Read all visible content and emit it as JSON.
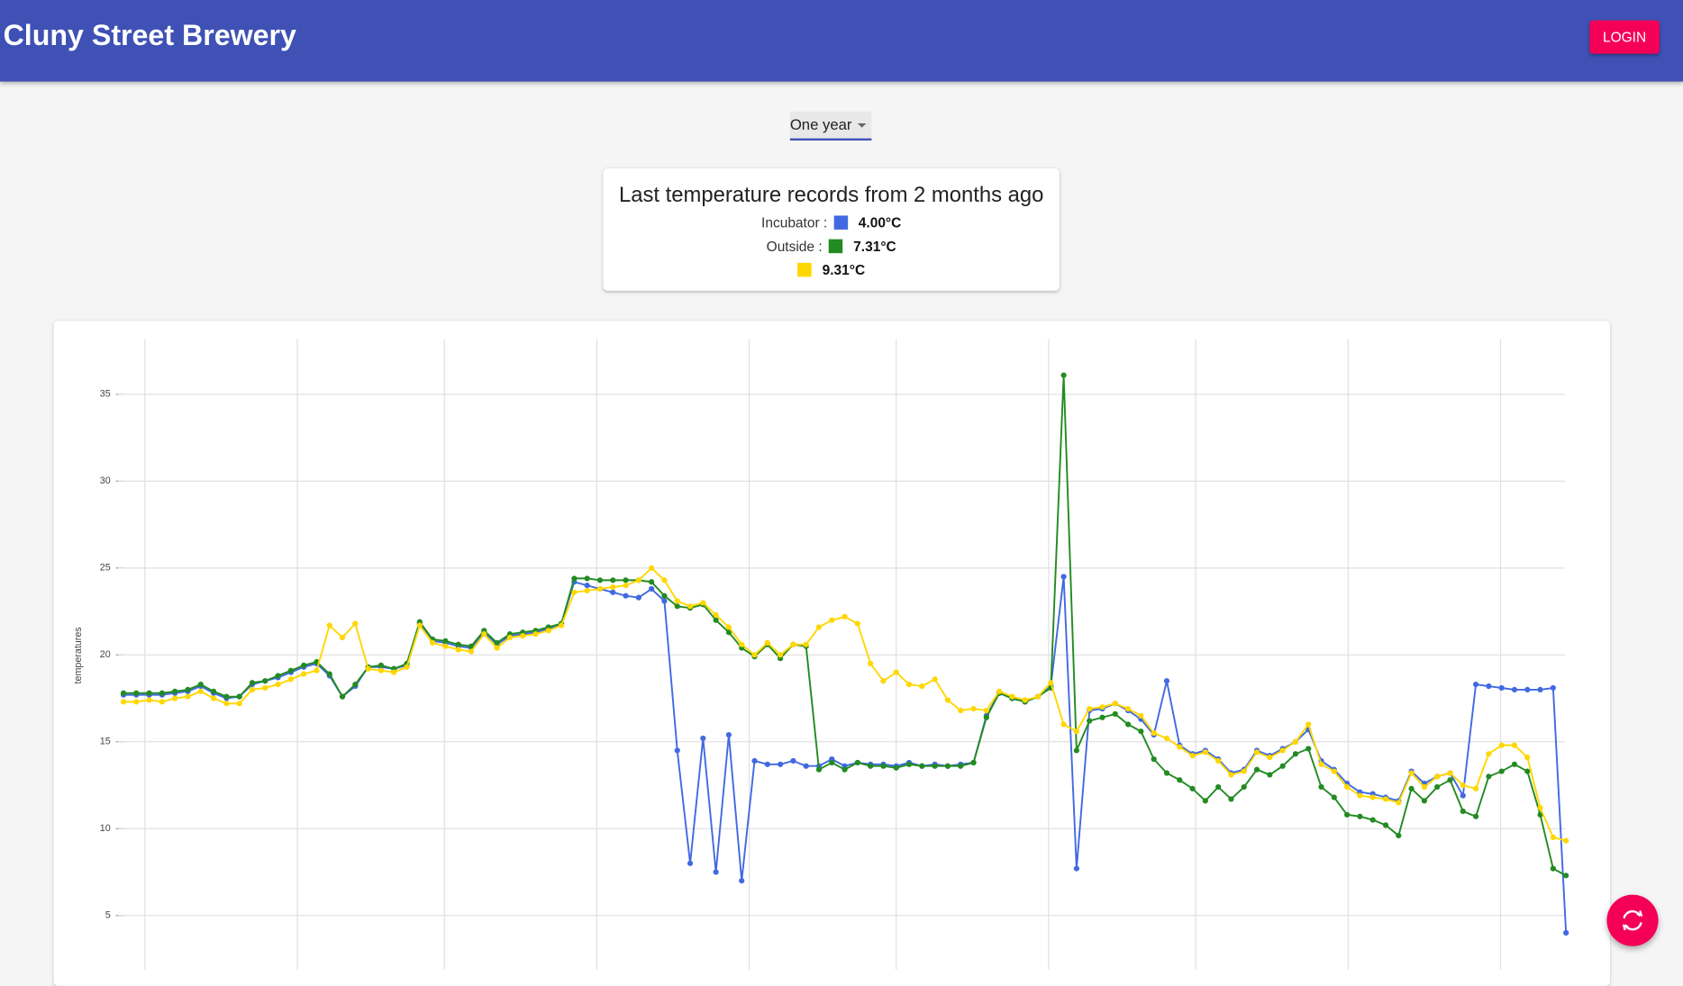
{
  "header": {
    "title": "Cluny Street Brewery",
    "login": "LOGIN"
  },
  "period_select": {
    "value": "One year"
  },
  "last_records": {
    "title": "Last temperature records from 2 months ago",
    "rows": [
      {
        "label": "Incubator :",
        "color": "#4169e1",
        "value": "4.00°C"
      },
      {
        "label": "Outside :",
        "color": "#228b22",
        "value": "7.31°C"
      },
      {
        "color": "#ffd700",
        "value": "9.31°C"
      }
    ]
  },
  "chart_data": {
    "type": "line",
    "y_label": "temperatures",
    "ylim": [
      2,
      38
    ],
    "yticks": [
      5,
      10,
      15,
      20,
      25,
      30,
      35
    ],
    "grid": true,
    "series": [
      {
        "color": "#4169e1",
        "values": [
          17.7,
          17.7,
          17.7,
          17.7,
          17.8,
          17.9,
          18.2,
          17.8,
          17.5,
          17.6,
          18.3,
          18.5,
          18.7,
          19.0,
          19.3,
          19.5,
          18.8,
          17.6,
          18.2,
          19.3,
          19.3,
          19.2,
          19.4,
          21.8,
          20.8,
          20.7,
          20.5,
          20.4,
          21.3,
          20.6,
          21.1,
          21.2,
          21.3,
          21.5,
          21.8,
          24.2,
          24.0,
          23.8,
          23.6,
          23.4,
          23.3,
          23.8,
          23.1,
          14.5,
          8.0,
          15.2,
          7.5,
          15.4,
          7.0,
          13.9,
          13.7,
          13.7,
          13.9,
          13.6,
          13.6,
          14.0,
          13.6,
          13.8,
          13.7,
          13.7,
          13.6,
          13.8,
          13.6,
          13.7,
          13.6,
          13.7,
          13.8,
          16.5,
          17.8,
          17.5,
          17.3,
          17.6,
          18.2,
          24.5,
          7.7,
          16.8,
          16.9,
          17.2,
          16.8,
          16.3,
          15.4,
          18.5,
          14.8,
          14.3,
          14.5,
          14.0,
          13.2,
          13.4,
          14.5,
          14.2,
          14.6,
          15.0,
          15.7,
          13.9,
          13.4,
          12.6,
          12.1,
          12.0,
          11.8,
          11.6,
          13.3,
          12.6,
          13.0,
          13.2,
          11.9,
          18.3,
          18.2,
          18.1,
          18.0,
          18.0,
          18.0,
          18.1,
          4.0
        ]
      },
      {
        "color": "#228b22",
        "values": [
          17.8,
          17.8,
          17.8,
          17.8,
          17.9,
          18.0,
          18.3,
          17.9,
          17.6,
          17.6,
          18.4,
          18.5,
          18.8,
          19.1,
          19.4,
          19.6,
          18.9,
          17.6,
          18.3,
          19.3,
          19.4,
          19.2,
          19.5,
          21.9,
          20.9,
          20.8,
          20.6,
          20.5,
          21.4,
          20.7,
          21.2,
          21.3,
          21.4,
          21.6,
          21.8,
          24.4,
          24.4,
          24.3,
          24.3,
          24.3,
          24.3,
          24.2,
          23.4,
          22.8,
          22.7,
          22.9,
          22.0,
          21.3,
          20.4,
          19.9,
          20.6,
          19.8,
          20.6,
          20.5,
          13.4,
          13.8,
          13.4,
          13.8,
          13.6,
          13.6,
          13.5,
          13.7,
          13.6,
          13.6,
          13.6,
          13.6,
          13.8,
          16.4,
          17.8,
          17.5,
          17.3,
          17.6,
          18.1,
          36.1,
          14.5,
          16.2,
          16.4,
          16.6,
          16.0,
          15.6,
          14.0,
          13.2,
          12.8,
          12.3,
          11.6,
          12.4,
          11.7,
          12.4,
          13.4,
          13.1,
          13.6,
          14.3,
          14.6,
          12.4,
          11.8,
          10.8,
          10.7,
          10.5,
          10.2,
          9.6,
          12.3,
          11.6,
          12.4,
          12.8,
          11.0,
          10.7,
          13.0,
          13.3,
          13.7,
          13.3,
          10.8,
          7.7,
          7.3
        ]
      },
      {
        "color": "#ffd700",
        "values": [
          17.3,
          17.3,
          17.4,
          17.3,
          17.5,
          17.6,
          17.9,
          17.5,
          17.2,
          17.2,
          18.0,
          18.1,
          18.3,
          18.6,
          18.9,
          19.1,
          21.7,
          21.0,
          21.8,
          19.2,
          19.1,
          19.0,
          19.3,
          21.7,
          20.7,
          20.5,
          20.3,
          20.2,
          21.2,
          20.4,
          21.0,
          21.1,
          21.2,
          21.4,
          21.7,
          23.6,
          23.7,
          23.8,
          23.9,
          24.0,
          24.3,
          25.0,
          24.3,
          23.1,
          22.8,
          23.0,
          22.3,
          21.6,
          20.6,
          20.0,
          20.7,
          20.0,
          20.6,
          20.6,
          21.6,
          22.0,
          22.2,
          21.8,
          19.5,
          18.5,
          19.0,
          18.3,
          18.2,
          18.6,
          17.4,
          16.8,
          16.9,
          16.8,
          17.9,
          17.6,
          17.4,
          17.6,
          18.4,
          16.0,
          15.6,
          16.9,
          17.0,
          17.2,
          16.9,
          16.5,
          15.5,
          15.2,
          14.7,
          14.2,
          14.4,
          13.9,
          13.1,
          13.3,
          14.4,
          14.1,
          14.5,
          15.0,
          16.0,
          13.7,
          13.3,
          12.4,
          11.9,
          11.8,
          11.7,
          11.5,
          13.2,
          12.4,
          13.0,
          13.2,
          12.5,
          12.3,
          14.3,
          14.8,
          14.8,
          14.1,
          11.2,
          9.5,
          9.3
        ]
      }
    ]
  }
}
